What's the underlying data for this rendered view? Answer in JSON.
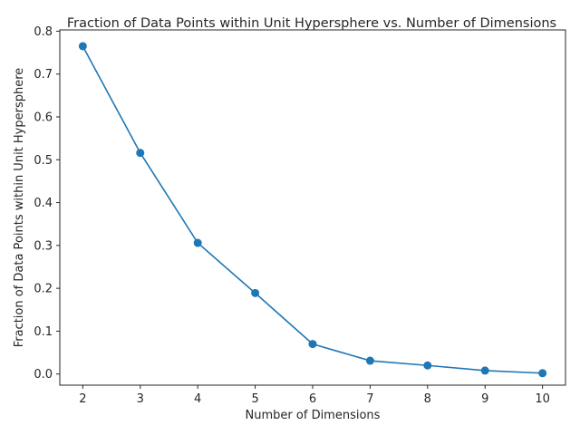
{
  "chart_data": {
    "type": "line",
    "title": "Fraction of Data Points within Unit Hypersphere vs. Number of Dimensions",
    "xlabel": "Number of Dimensions",
    "ylabel": "Fraction of Data Points within Unit Hypersphere",
    "x": [
      2,
      3,
      4,
      5,
      6,
      7,
      8,
      9,
      10
    ],
    "series": [
      {
        "values": [
          0.765,
          0.516,
          0.306,
          0.189,
          0.07,
          0.031,
          0.02,
          0.008,
          0.002
        ],
        "color": "#1f77b4",
        "marker": "circle"
      }
    ],
    "xticks": [
      2,
      3,
      4,
      5,
      6,
      7,
      8,
      9,
      10
    ],
    "yticks": [
      0.0,
      0.1,
      0.2,
      0.3,
      0.4,
      0.5,
      0.6,
      0.7,
      0.8
    ],
    "xlim": [
      1.6,
      10.4
    ],
    "ylim": [
      -0.026,
      0.803
    ],
    "grid": false
  }
}
